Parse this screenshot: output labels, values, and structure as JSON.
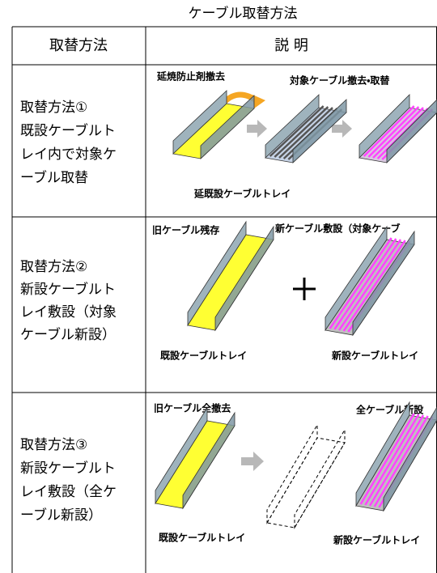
{
  "title": "ケーブル取替方法",
  "table": {
    "header": [
      "取替方法",
      "説 明"
    ],
    "rows": [
      {
        "method": [
          "取替方法①",
          "既設ケーブルト",
          "レイ内で対象ケ",
          "ーブル取替"
        ],
        "labels": [
          "延焼防止剤撤去",
          "対象ケーブル撤去・取替",
          "延既設ケーブルトレイ"
        ]
      },
      {
        "method": [
          "取替方法②",
          "新設ケーブルト",
          "レイ敷設（対象",
          "ケーブル新設）"
        ],
        "labels": [
          "旧ケーブル残存",
          "新ケーブル敷設（対象ケーブ",
          "既設ケーブルトレイ",
          "新設ケーブルトレイ"
        ]
      },
      {
        "method": [
          "取替方法③",
          "新設ケーブルト",
          "レイ敷設（全ケ",
          "ーブル新設）"
        ],
        "labels": [
          "旧ケーブル全撤去",
          "全ケーブル新設",
          "既設ケーブルトレイ",
          "新設ケーブルトレイ"
        ]
      }
    ]
  }
}
